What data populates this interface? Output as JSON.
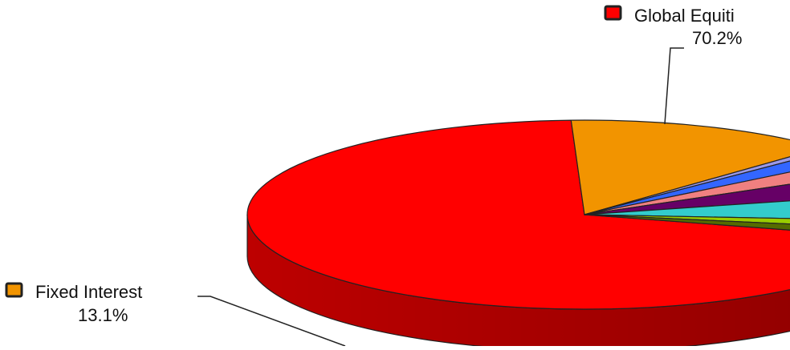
{
  "chart_data": {
    "type": "pie",
    "title": "",
    "three_d": true,
    "series": [
      {
        "name": "Global Equities",
        "value": 70.2,
        "color": "#ff0000",
        "label": "Global Equiti",
        "value_label": "70.2%"
      },
      {
        "name": "Fixed Interest",
        "value": 13.1,
        "color": "#f29400",
        "label": "Fixed Interest",
        "value_label": "13.1%"
      },
      {
        "name": "",
        "value": 0.6,
        "color": "#9a98e8"
      },
      {
        "name": "",
        "value": 1.8,
        "color": "#3366ff"
      },
      {
        "name": "",
        "value": 2.4,
        "color": "#f08080"
      },
      {
        "name": "",
        "value": 4.0,
        "color": "#660066"
      },
      {
        "name": "",
        "value": 4.8,
        "color": "#33cccc"
      },
      {
        "name": "",
        "value": 1.5,
        "color": "#99cc00"
      },
      {
        "name": "",
        "value": 1.6,
        "color": "#556b00"
      }
    ]
  }
}
